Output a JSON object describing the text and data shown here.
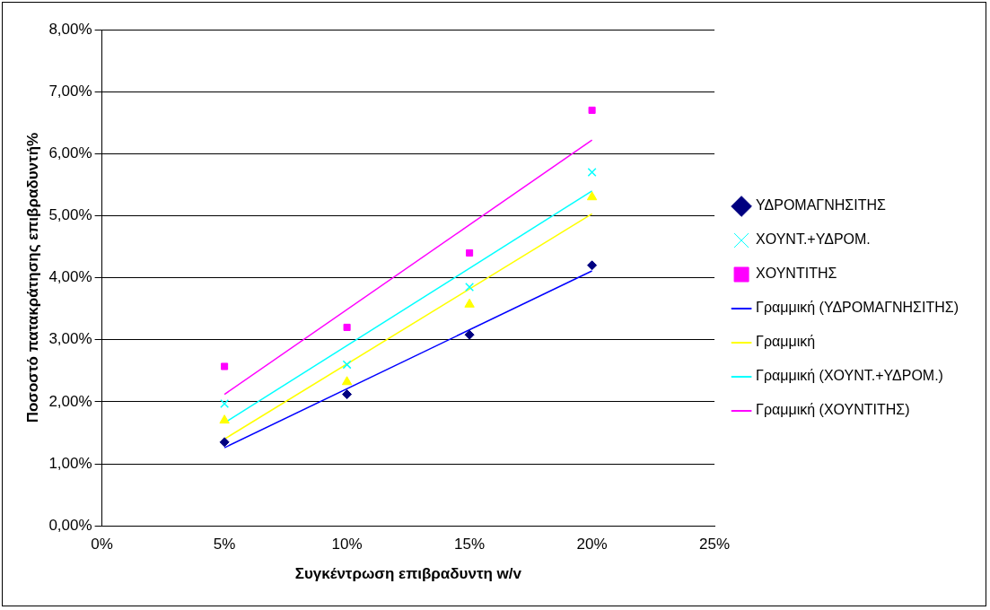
{
  "chart_data": {
    "type": "scatter",
    "xlabel": "Συγκέντρωση επιβραδυντη w/v",
    "ylabel": "Ποσοστό πατακράτησης επιβραδυντή%",
    "xlim": [
      0,
      25
    ],
    "xticks": [
      {
        "value": 0,
        "label": "0%"
      },
      {
        "value": 5,
        "label": "5%"
      },
      {
        "value": 10,
        "label": "10%"
      },
      {
        "value": 15,
        "label": "15%"
      },
      {
        "value": 20,
        "label": "20%"
      },
      {
        "value": 25,
        "label": "25%"
      }
    ],
    "ylim": [
      0,
      8
    ],
    "yticks": [
      {
        "value": 0,
        "label": "0,00%"
      },
      {
        "value": 1,
        "label": "1,00%"
      },
      {
        "value": 2,
        "label": "2,00%"
      },
      {
        "value": 3,
        "label": "3,00%"
      },
      {
        "value": 4,
        "label": "4,00%"
      },
      {
        "value": 5,
        "label": "5,00%"
      },
      {
        "value": 6,
        "label": "6,00%"
      },
      {
        "value": 7,
        "label": "7,00%"
      },
      {
        "value": 8,
        "label": "8,00%"
      }
    ],
    "grid": "y",
    "legend": "right",
    "series": [
      {
        "name": "ΥΔΡΟΜΑΓΝΗΣΙΤΗΣ",
        "type": "scatter",
        "marker": "diamond",
        "color": "#000080",
        "x": [
          5,
          10,
          15,
          20
        ],
        "values": [
          1.35,
          2.12,
          3.08,
          4.2
        ]
      },
      {
        "type": "scatter",
        "marker": "triangle",
        "color": "#ffff00",
        "x": [
          5,
          10,
          15,
          20
        ],
        "values": [
          1.7,
          2.32,
          3.57,
          5.3
        ]
      },
      {
        "name": "ΧΟΥΝΤ.+ΥΔΡΟΜ.",
        "type": "scatter",
        "marker": "cross",
        "color": "#00ffff",
        "x": [
          5,
          10,
          15,
          20
        ],
        "values": [
          1.97,
          2.6,
          3.85,
          5.7
        ]
      },
      {
        "name": "ΧΟΥΝΤΙΤΗΣ",
        "type": "scatter",
        "marker": "square",
        "color": "#ff00ff",
        "x": [
          5,
          10,
          15,
          20
        ],
        "values": [
          2.57,
          3.2,
          4.4,
          6.7
        ]
      },
      {
        "name": "Γραμμική (ΥΔΡΟΜΑΓΝΗΣΙΤΗΣ)",
        "type": "line",
        "marker": "none",
        "color": "#0000ff",
        "x": [
          5,
          20
        ],
        "values": [
          1.26,
          4.11
        ]
      },
      {
        "name": "Γραμμική",
        "type": "line",
        "marker": "none",
        "color": "#ffff00",
        "x": [
          5,
          20
        ],
        "values": [
          1.4,
          5.03
        ]
      },
      {
        "name": "Γραμμική (ΧΟΥΝΤ.+ΥΔΡΟΜ.)",
        "type": "line",
        "marker": "none",
        "color": "#00ffff",
        "x": [
          5,
          20
        ],
        "values": [
          1.66,
          5.4
        ]
      },
      {
        "name": "Γραμμική (ΧΟΥΝΤΙΤΗΣ)",
        "type": "line",
        "marker": "none",
        "color": "#ff00ff",
        "x": [
          5,
          20
        ],
        "values": [
          2.12,
          6.22
        ]
      }
    ]
  }
}
